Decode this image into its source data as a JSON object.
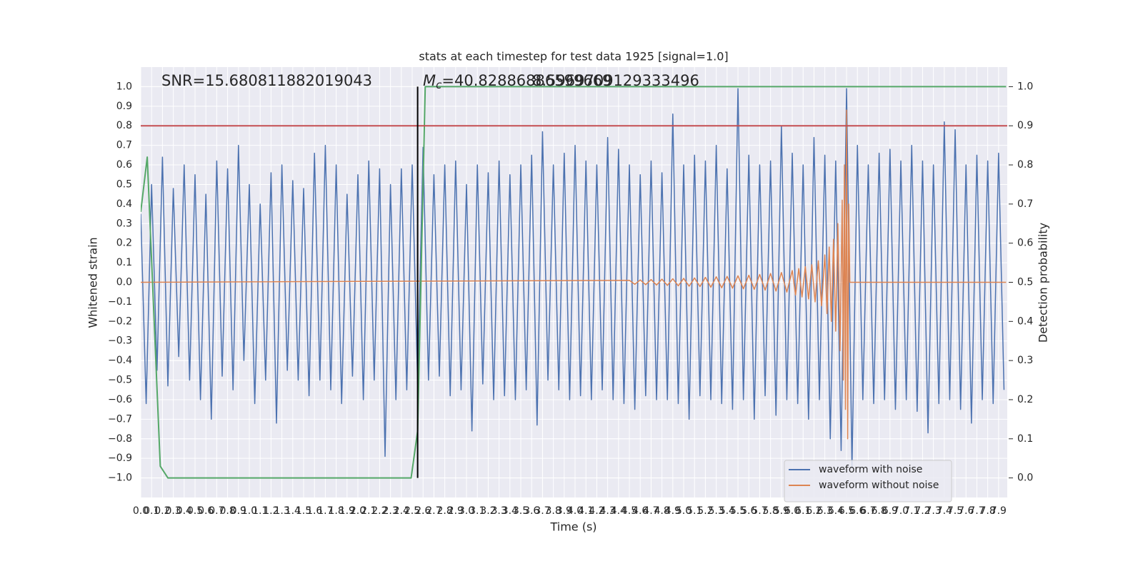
{
  "chart_data": {
    "type": "line",
    "title": "stats at each timestep for test data 1925 [signal=1.0]",
    "xlabel": "Time (s)",
    "ylabel": "Whitened strain",
    "y2label": "Detection probability",
    "annotations": {
      "snr": "SNR=15.680811882019043",
      "mc_symbol": "M",
      "mc_subscript": "c",
      "mc_value": "=40.82886886599669",
      "second": "8.5969709129333496"
    },
    "grid": true,
    "legend": "lower right",
    "xlim": [
      0,
      7.98
    ],
    "ylim": [
      -1.1,
      1.1
    ],
    "y2lim": [
      -0.05,
      1.05
    ],
    "xticks": [
      {
        "value": 0,
        "label": "0.0"
      },
      0.1,
      0.2,
      0.3,
      0.4,
      0.5,
      0.6,
      0.7,
      0.8,
      0.9,
      {
        "value": 1,
        "label": "1.0"
      },
      1.1,
      1.2,
      1.3,
      1.4,
      1.5,
      1.6,
      1.7,
      1.8,
      1.9,
      {
        "value": 2,
        "label": "2.0"
      },
      2.1,
      2.2,
      2.3,
      2.4,
      2.5,
      2.6,
      2.7,
      2.8,
      2.9,
      {
        "value": 3,
        "label": "3.0"
      },
      3.1,
      3.2,
      3.3,
      3.4,
      3.5,
      3.6,
      3.7,
      3.8,
      3.9,
      {
        "value": 4,
        "label": "4.0"
      },
      4.1,
      4.2,
      4.3,
      4.4,
      4.5,
      4.6,
      4.7,
      4.8,
      4.9,
      {
        "value": 5,
        "label": "5.0"
      },
      5.1,
      5.2,
      5.3,
      5.4,
      5.5,
      5.6,
      5.7,
      5.8,
      5.9,
      {
        "value": 6,
        "label": "6.0"
      },
      6.1,
      6.2,
      6.3,
      6.4,
      6.5,
      6.6,
      6.7,
      6.8,
      6.9,
      {
        "value": 7,
        "label": "7.0"
      },
      7.1,
      7.2,
      7.3,
      7.4,
      7.5,
      7.6,
      7.7,
      7.8,
      7.9
    ],
    "yticks": [
      {
        "value": -1,
        "label": "−1.0"
      },
      {
        "value": -0.9,
        "label": "−0.9"
      },
      {
        "value": -0.8,
        "label": "−0.8"
      },
      {
        "value": -0.7,
        "label": "−0.7"
      },
      {
        "value": -0.6,
        "label": "−0.6"
      },
      {
        "value": -0.5,
        "label": "−0.5"
      },
      {
        "value": -0.4,
        "label": "−0.4"
      },
      {
        "value": -0.3,
        "label": "−0.3"
      },
      {
        "value": -0.2,
        "label": "−0.2"
      },
      {
        "value": -0.1,
        "label": "−0.1"
      },
      {
        "value": 0,
        "label": "0.0"
      },
      0.1,
      0.2,
      0.3,
      0.4,
      0.5,
      0.6,
      0.7,
      0.8,
      0.9,
      {
        "value": 1,
        "label": "1.0"
      }
    ],
    "y2ticks": [
      {
        "value": 0,
        "label": "0.0"
      },
      0.1,
      0.2,
      0.3,
      0.4,
      0.5,
      0.6,
      0.7,
      0.8,
      0.9,
      {
        "value": 1,
        "label": "1.0"
      }
    ],
    "series": [
      {
        "name": "waveform with noise",
        "color": "#4c72b0",
        "x": [
          0,
          0.05,
          0.1,
          0.15,
          0.2,
          0.25,
          0.3,
          0.35,
          0.4,
          0.45,
          0.5,
          0.55,
          0.6,
          0.65,
          0.7,
          0.75,
          0.8,
          0.85,
          0.9,
          0.95,
          1,
          1.05,
          1.1,
          1.15,
          1.2,
          1.25,
          1.3,
          1.35,
          1.4,
          1.45,
          1.5,
          1.55,
          1.6,
          1.65,
          1.7,
          1.75,
          1.8,
          1.85,
          1.9,
          1.95,
          2,
          2.05,
          2.1,
          2.15,
          2.2,
          2.25,
          2.3,
          2.35,
          2.4,
          2.45,
          2.5,
          2.55,
          2.6,
          2.65,
          2.7,
          2.75,
          2.8,
          2.85,
          2.9,
          2.95,
          3,
          3.05,
          3.1,
          3.15,
          3.2,
          3.25,
          3.3,
          3.35,
          3.4,
          3.45,
          3.5,
          3.55,
          3.6,
          3.65,
          3.7,
          3.75,
          3.8,
          3.85,
          3.9,
          3.95,
          4,
          4.05,
          4.1,
          4.15,
          4.2,
          4.25,
          4.3,
          4.35,
          4.4,
          4.45,
          4.5,
          4.55,
          4.6,
          4.65,
          4.7,
          4.75,
          4.8,
          4.85,
          4.9,
          4.95,
          5,
          5.05,
          5.1,
          5.15,
          5.2,
          5.25,
          5.3,
          5.35,
          5.4,
          5.45,
          5.5,
          5.55,
          5.6,
          5.65,
          5.7,
          5.75,
          5.8,
          5.85,
          5.9,
          5.95,
          6,
          6.05,
          6.1,
          6.15,
          6.2,
          6.25,
          6.3,
          6.35,
          6.4,
          6.45,
          6.5,
          6.55,
          6.6,
          6.65,
          6.7,
          6.75,
          6.8,
          6.85,
          6.9,
          6.95,
          7,
          7.05,
          7.1,
          7.15,
          7.2,
          7.25,
          7.3,
          7.35,
          7.4,
          7.45,
          7.5,
          7.55,
          7.6,
          7.65,
          7.7,
          7.75,
          7.8,
          7.85,
          7.9,
          7.95
        ],
        "values": [
          0.35,
          -0.62,
          0.5,
          -0.45,
          0.64,
          -0.53,
          0.48,
          -0.38,
          0.6,
          -0.5,
          0.55,
          -0.6,
          0.45,
          -0.7,
          0.62,
          -0.48,
          0.58,
          -0.55,
          0.7,
          -0.4,
          0.5,
          -0.62,
          0.4,
          -0.5,
          0.56,
          -0.72,
          0.6,
          -0.45,
          0.52,
          -0.5,
          0.48,
          -0.58,
          0.66,
          -0.5,
          0.7,
          -0.55,
          0.6,
          -0.62,
          0.45,
          -0.48,
          0.55,
          -0.6,
          0.62,
          -0.5,
          0.58,
          -0.89,
          0.5,
          -0.6,
          0.58,
          -0.55,
          0.6,
          -0.52,
          0.69,
          -0.5,
          0.55,
          -0.48,
          0.6,
          -0.58,
          0.62,
          -0.55,
          0.5,
          -0.76,
          0.6,
          -0.52,
          0.56,
          -0.6,
          0.62,
          -0.58,
          0.55,
          -0.6,
          0.6,
          -0.55,
          0.65,
          -0.73,
          0.77,
          -0.5,
          0.6,
          -0.55,
          0.66,
          -0.6,
          0.7,
          -0.58,
          0.62,
          -0.6,
          0.6,
          -0.55,
          0.74,
          -0.6,
          0.68,
          -0.62,
          0.6,
          -0.65,
          0.55,
          -0.58,
          0.62,
          -0.6,
          0.56,
          -0.6,
          0.86,
          -0.62,
          0.6,
          -0.7,
          0.65,
          -0.58,
          0.62,
          -0.6,
          0.7,
          -0.62,
          0.58,
          -0.65,
          0.99,
          -0.6,
          0.65,
          -0.7,
          0.6,
          -0.58,
          0.62,
          -0.68,
          0.8,
          -0.6,
          0.66,
          -0.62,
          0.6,
          -0.7,
          0.74,
          -0.6,
          0.65,
          -0.8,
          0.62,
          -0.86,
          0.99,
          -0.95,
          0.7,
          -0.6,
          0.6,
          -0.62,
          0.66,
          -0.6,
          0.68,
          -0.65,
          0.62,
          -0.6,
          0.7,
          -0.66,
          0.62,
          -0.77,
          0.6,
          -0.62,
          0.82,
          -0.6,
          0.78,
          -0.65,
          0.6,
          -0.72,
          0.65,
          -0.6,
          0.62,
          -0.62,
          0.66,
          -0.55
        ]
      },
      {
        "name": "waveform without noise",
        "color": "#dd8452",
        "x": [
          0,
          4.5,
          4.55,
          4.6,
          4.65,
          4.7,
          4.75,
          4.8,
          4.85,
          4.9,
          4.95,
          5,
          5.05,
          5.1,
          5.15,
          5.2,
          5.25,
          5.3,
          5.35,
          5.4,
          5.45,
          5.5,
          5.55,
          5.6,
          5.65,
          5.7,
          5.75,
          5.8,
          5.85,
          5.9,
          5.95,
          6,
          6.03,
          6.06,
          6.09,
          6.12,
          6.15,
          6.18,
          6.21,
          6.24,
          6.27,
          6.3,
          6.32,
          6.34,
          6.36,
          6.38,
          6.4,
          6.42,
          6.44,
          6.46,
          6.47,
          6.48,
          6.49,
          6.5,
          6.51,
          6.52,
          6.53,
          7.97
        ],
        "values": [
          0,
          0.01,
          -0.01,
          0.012,
          -0.012,
          0.014,
          -0.014,
          0.016,
          -0.016,
          0.018,
          -0.018,
          0.02,
          -0.02,
          0.022,
          -0.022,
          0.025,
          -0.025,
          0.028,
          -0.028,
          0.03,
          -0.03,
          0.033,
          -0.033,
          0.036,
          -0.036,
          0.04,
          -0.04,
          0.045,
          -0.045,
          0.05,
          -0.05,
          0.06,
          -0.065,
          0.07,
          -0.075,
          0.08,
          -0.085,
          0.09,
          -0.1,
          0.11,
          -0.12,
          0.14,
          -0.16,
          0.18,
          -0.2,
          0.22,
          -0.25,
          0.3,
          -0.35,
          0.42,
          -0.5,
          0.6,
          -0.65,
          0.88,
          -0.8,
          0.4,
          0,
          0
        ]
      },
      {
        "color": "#55a868",
        "axis": "y2",
        "x": [
          0,
          0.06,
          0.18,
          0.25,
          2.49,
          2.55,
          2.62,
          7.97
        ],
        "values": [
          0.68,
          0.82,
          0.03,
          0,
          0,
          0.12,
          1,
          1
        ]
      }
    ],
    "threshold": {
      "value": 0.8,
      "color": "#c44e52"
    },
    "event": {
      "x": 2.55,
      "y": [
        -1,
        1
      ],
      "color": "#000000"
    }
  }
}
